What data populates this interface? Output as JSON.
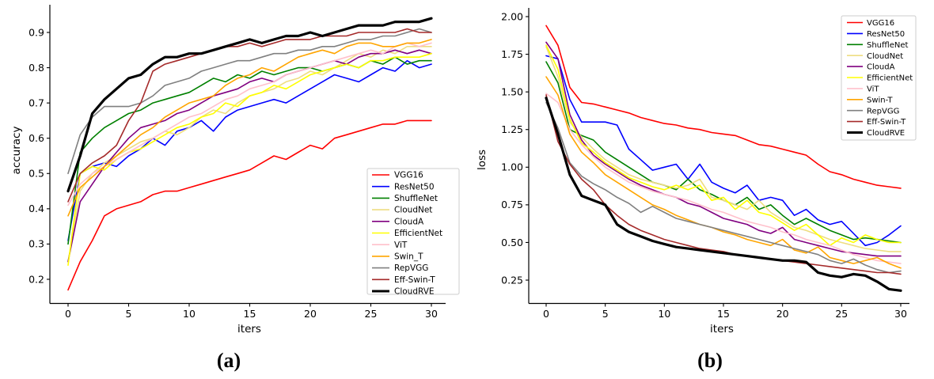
{
  "figure": {
    "captions": [
      "(a)",
      "(b)"
    ]
  },
  "chart_data": [
    {
      "type": "line",
      "title": "",
      "xlabel": "iters",
      "ylabel": "accuracy",
      "xlim": [
        -1.5,
        31.5
      ],
      "ylim": [
        0.13,
        0.98
      ],
      "grid": false,
      "legend_position": "lower right",
      "x": [
        0,
        1,
        2,
        3,
        4,
        5,
        6,
        7,
        8,
        9,
        10,
        11,
        12,
        13,
        14,
        15,
        16,
        17,
        18,
        19,
        20,
        21,
        22,
        23,
        24,
        25,
        26,
        27,
        28,
        29,
        30
      ],
      "xticks": [
        0,
        5,
        10,
        15,
        20,
        25,
        30
      ],
      "yticks": [
        0.2,
        0.3,
        0.4,
        0.5,
        0.6,
        0.7,
        0.8,
        0.9
      ],
      "ytick_labels": [
        "0.2",
        "0.3",
        "0.4",
        "0.5",
        "0.6",
        "0.7",
        "0.8",
        "0.9"
      ],
      "series": [
        {
          "name": "VGG16",
          "color": "#ff0000",
          "width": 1.6,
          "values": [
            0.17,
            0.25,
            0.31,
            0.38,
            0.4,
            0.41,
            0.42,
            0.44,
            0.45,
            0.45,
            0.46,
            0.47,
            0.48,
            0.49,
            0.5,
            0.51,
            0.53,
            0.55,
            0.54,
            0.56,
            0.58,
            0.57,
            0.6,
            0.61,
            0.62,
            0.63,
            0.64,
            0.64,
            0.65,
            0.65,
            0.65
          ]
        },
        {
          "name": "ResNet50",
          "color": "#0000ff",
          "width": 1.6,
          "values": [
            0.31,
            0.5,
            0.52,
            0.53,
            0.52,
            0.55,
            0.57,
            0.6,
            0.58,
            0.62,
            0.63,
            0.65,
            0.62,
            0.66,
            0.68,
            0.69,
            0.7,
            0.71,
            0.7,
            0.72,
            0.74,
            0.76,
            0.78,
            0.77,
            0.76,
            0.78,
            0.8,
            0.79,
            0.82,
            0.8,
            0.81
          ]
        },
        {
          "name": "ShuffleNet",
          "color": "#008000",
          "width": 1.6,
          "values": [
            0.3,
            0.56,
            0.6,
            0.63,
            0.65,
            0.67,
            0.68,
            0.7,
            0.71,
            0.72,
            0.73,
            0.75,
            0.77,
            0.76,
            0.78,
            0.77,
            0.79,
            0.78,
            0.79,
            0.8,
            0.8,
            0.79,
            0.8,
            0.81,
            0.8,
            0.82,
            0.81,
            0.83,
            0.81,
            0.82,
            0.82
          ]
        },
        {
          "name": "CloudNet",
          "color": "#eedd82",
          "width": 1.6,
          "values": [
            0.25,
            0.45,
            0.5,
            0.53,
            0.55,
            0.57,
            0.59,
            0.6,
            0.62,
            0.61,
            0.63,
            0.66,
            0.68,
            0.67,
            0.7,
            0.72,
            0.73,
            0.74,
            0.76,
            0.77,
            0.79,
            0.78,
            0.8,
            0.82,
            0.84,
            0.83,
            0.85,
            0.84,
            0.86,
            0.86,
            0.86
          ]
        },
        {
          "name": "CloudA",
          "color": "#800080",
          "width": 1.6,
          "values": [
            0.25,
            0.42,
            0.47,
            0.52,
            0.56,
            0.6,
            0.63,
            0.64,
            0.65,
            0.67,
            0.68,
            0.7,
            0.72,
            0.73,
            0.74,
            0.76,
            0.77,
            0.76,
            0.78,
            0.79,
            0.8,
            0.81,
            0.82,
            0.81,
            0.83,
            0.84,
            0.84,
            0.85,
            0.84,
            0.85,
            0.84
          ]
        },
        {
          "name": "EfficientNet",
          "color": "#ffff00",
          "width": 1.6,
          "values": [
            0.24,
            0.5,
            0.52,
            0.51,
            0.54,
            0.56,
            0.57,
            0.59,
            0.61,
            0.63,
            0.64,
            0.66,
            0.67,
            0.7,
            0.69,
            0.72,
            0.73,
            0.75,
            0.74,
            0.76,
            0.78,
            0.79,
            0.8,
            0.81,
            0.8,
            0.82,
            0.82,
            0.83,
            0.83,
            0.83,
            0.84
          ]
        },
        {
          "name": "ViT",
          "color": "#ffc0cb",
          "width": 1.6,
          "values": [
            0.41,
            0.47,
            0.5,
            0.52,
            0.54,
            0.56,
            0.58,
            0.6,
            0.62,
            0.64,
            0.66,
            0.67,
            0.69,
            0.71,
            0.72,
            0.74,
            0.75,
            0.76,
            0.78,
            0.79,
            0.8,
            0.81,
            0.82,
            0.83,
            0.84,
            0.85,
            0.84,
            0.86,
            0.87,
            0.86,
            0.87
          ]
        },
        {
          "name": "Swin_T",
          "color": "#ffa500",
          "width": 1.6,
          "values": [
            0.38,
            0.46,
            0.49,
            0.52,
            0.55,
            0.58,
            0.61,
            0.63,
            0.66,
            0.68,
            0.7,
            0.71,
            0.72,
            0.75,
            0.77,
            0.78,
            0.8,
            0.79,
            0.81,
            0.83,
            0.84,
            0.85,
            0.84,
            0.86,
            0.87,
            0.87,
            0.86,
            0.86,
            0.87,
            0.87,
            0.88
          ]
        },
        {
          "name": "RepVGG",
          "color": "#808080",
          "width": 1.6,
          "values": [
            0.5,
            0.61,
            0.66,
            0.69,
            0.69,
            0.69,
            0.7,
            0.72,
            0.75,
            0.76,
            0.77,
            0.79,
            0.8,
            0.81,
            0.82,
            0.82,
            0.83,
            0.84,
            0.84,
            0.85,
            0.85,
            0.86,
            0.86,
            0.87,
            0.88,
            0.88,
            0.89,
            0.89,
            0.9,
            0.91,
            0.9
          ]
        },
        {
          "name": "Eff-Swin-T",
          "color": "#a52a2a",
          "width": 1.6,
          "values": [
            0.42,
            0.5,
            0.53,
            0.55,
            0.58,
            0.65,
            0.7,
            0.79,
            0.81,
            0.82,
            0.83,
            0.84,
            0.85,
            0.86,
            0.86,
            0.87,
            0.86,
            0.87,
            0.88,
            0.88,
            0.88,
            0.89,
            0.89,
            0.89,
            0.9,
            0.9,
            0.9,
            0.9,
            0.91,
            0.9,
            0.9
          ]
        },
        {
          "name": "CloudRVE",
          "color": "#000000",
          "width": 3.2,
          "values": [
            0.45,
            0.55,
            0.67,
            0.71,
            0.74,
            0.77,
            0.78,
            0.81,
            0.83,
            0.83,
            0.84,
            0.84,
            0.85,
            0.86,
            0.87,
            0.88,
            0.87,
            0.88,
            0.89,
            0.89,
            0.9,
            0.89,
            0.9,
            0.91,
            0.92,
            0.92,
            0.92,
            0.93,
            0.93,
            0.93,
            0.94
          ]
        }
      ]
    },
    {
      "type": "line",
      "title": "",
      "xlabel": "iters",
      "ylabel": "loss",
      "xlim": [
        -1.5,
        31.5
      ],
      "ylim": [
        0.09,
        2.03
      ],
      "grid": false,
      "legend_position": "upper right",
      "x": [
        0,
        1,
        2,
        3,
        4,
        5,
        6,
        7,
        8,
        9,
        10,
        11,
        12,
        13,
        14,
        15,
        16,
        17,
        18,
        19,
        20,
        21,
        22,
        23,
        24,
        25,
        26,
        27,
        28,
        29,
        30
      ],
      "xticks": [
        0,
        5,
        10,
        15,
        20,
        25,
        30
      ],
      "yticks": [
        0.25,
        0.5,
        0.75,
        1.0,
        1.25,
        1.5,
        1.75,
        2.0
      ],
      "ytick_labels": [
        "0.25",
        "0.50",
        "0.75",
        "1.00",
        "1.25",
        "1.50",
        "1.75",
        "2.00"
      ],
      "series": [
        {
          "name": "VGG16",
          "color": "#ff0000",
          "width": 1.6,
          "values": [
            1.94,
            1.81,
            1.53,
            1.43,
            1.42,
            1.4,
            1.38,
            1.36,
            1.33,
            1.31,
            1.29,
            1.28,
            1.26,
            1.25,
            1.23,
            1.22,
            1.21,
            1.18,
            1.15,
            1.14,
            1.12,
            1.1,
            1.08,
            1.02,
            0.97,
            0.95,
            0.92,
            0.9,
            0.88,
            0.87,
            0.86
          ]
        },
        {
          "name": "ResNet50",
          "color": "#0000ff",
          "width": 1.6,
          "values": [
            1.74,
            1.72,
            1.45,
            1.3,
            1.3,
            1.3,
            1.28,
            1.12,
            1.05,
            0.98,
            1.0,
            1.02,
            0.92,
            1.02,
            0.9,
            0.86,
            0.83,
            0.88,
            0.78,
            0.8,
            0.78,
            0.68,
            0.72,
            0.65,
            0.62,
            0.64,
            0.56,
            0.48,
            0.5,
            0.55,
            0.61
          ]
        },
        {
          "name": "ShuffleNet",
          "color": "#008000",
          "width": 1.6,
          "values": [
            1.7,
            1.56,
            1.25,
            1.21,
            1.18,
            1.1,
            1.05,
            1.0,
            0.95,
            0.9,
            0.88,
            0.85,
            0.92,
            0.85,
            0.82,
            0.78,
            0.75,
            0.8,
            0.72,
            0.75,
            0.68,
            0.62,
            0.66,
            0.62,
            0.58,
            0.55,
            0.52,
            0.53,
            0.52,
            0.51,
            0.5
          ]
        },
        {
          "name": "CloudNet",
          "color": "#eedd82",
          "width": 1.6,
          "values": [
            1.8,
            1.6,
            1.3,
            1.2,
            1.12,
            1.05,
            1.0,
            0.95,
            0.92,
            0.9,
            0.88,
            0.86,
            0.88,
            0.92,
            0.8,
            0.78,
            0.75,
            0.72,
            0.78,
            0.7,
            0.65,
            0.6,
            0.58,
            0.55,
            0.52,
            0.5,
            0.48,
            0.46,
            0.45,
            0.44,
            0.44
          ]
        },
        {
          "name": "CloudA",
          "color": "#800080",
          "width": 1.6,
          "values": [
            1.83,
            1.72,
            1.35,
            1.18,
            1.08,
            1.02,
            0.97,
            0.92,
            0.88,
            0.85,
            0.82,
            0.8,
            0.76,
            0.74,
            0.7,
            0.66,
            0.64,
            0.62,
            0.58,
            0.56,
            0.6,
            0.52,
            0.5,
            0.48,
            0.46,
            0.44,
            0.43,
            0.42,
            0.41,
            0.41,
            0.41
          ]
        },
        {
          "name": "EfficientNet",
          "color": "#ffff00",
          "width": 1.6,
          "values": [
            1.81,
            1.65,
            1.32,
            1.16,
            1.1,
            1.03,
            0.98,
            0.93,
            0.9,
            0.87,
            0.85,
            0.88,
            0.85,
            0.88,
            0.78,
            0.8,
            0.72,
            0.78,
            0.7,
            0.68,
            0.63,
            0.58,
            0.62,
            0.55,
            0.48,
            0.53,
            0.5,
            0.55,
            0.52,
            0.5,
            0.5
          ]
        },
        {
          "name": "ViT",
          "color": "#ffc0cb",
          "width": 1.6,
          "values": [
            1.49,
            1.43,
            1.25,
            1.15,
            1.07,
            1.0,
            0.95,
            0.9,
            0.87,
            0.84,
            0.82,
            0.8,
            0.78,
            0.75,
            0.72,
            0.7,
            0.67,
            0.64,
            0.62,
            0.6,
            0.57,
            0.55,
            0.52,
            0.5,
            0.48,
            0.45,
            0.42,
            0.4,
            0.38,
            0.37,
            0.36
          ]
        },
        {
          "name": "Swin-T",
          "color": "#ffa500",
          "width": 1.6,
          "values": [
            1.6,
            1.48,
            1.22,
            1.1,
            1.03,
            0.95,
            0.9,
            0.85,
            0.8,
            0.75,
            0.72,
            0.68,
            0.65,
            0.62,
            0.6,
            0.57,
            0.55,
            0.52,
            0.5,
            0.48,
            0.52,
            0.45,
            0.43,
            0.47,
            0.4,
            0.38,
            0.36,
            0.38,
            0.4,
            0.36,
            0.33
          ]
        },
        {
          "name": "RepVGG",
          "color": "#808080",
          "width": 1.6,
          "values": [
            1.43,
            1.26,
            1.03,
            0.94,
            0.89,
            0.85,
            0.8,
            0.76,
            0.7,
            0.74,
            0.7,
            0.66,
            0.64,
            0.62,
            0.6,
            0.58,
            0.56,
            0.54,
            0.52,
            0.5,
            0.48,
            0.46,
            0.44,
            0.42,
            0.38,
            0.36,
            0.39,
            0.35,
            0.32,
            0.3,
            0.31
          ]
        },
        {
          "name": "Eff-Swin-T",
          "color": "#a52a2a",
          "width": 1.6,
          "values": [
            1.48,
            1.17,
            1.02,
            0.92,
            0.85,
            0.75,
            0.68,
            0.62,
            0.58,
            0.55,
            0.52,
            0.5,
            0.48,
            0.46,
            0.45,
            0.44,
            0.42,
            0.41,
            0.4,
            0.39,
            0.38,
            0.37,
            0.36,
            0.35,
            0.34,
            0.33,
            0.32,
            0.31,
            0.3,
            0.3,
            0.29
          ]
        },
        {
          "name": "CloudRVE",
          "color": "#000000",
          "width": 3.2,
          "values": [
            1.46,
            1.22,
            0.95,
            0.81,
            0.78,
            0.75,
            0.62,
            0.57,
            0.54,
            0.51,
            0.49,
            0.47,
            0.46,
            0.45,
            0.44,
            0.43,
            0.42,
            0.41,
            0.4,
            0.39,
            0.38,
            0.38,
            0.37,
            0.3,
            0.28,
            0.27,
            0.29,
            0.28,
            0.24,
            0.19,
            0.18
          ]
        }
      ]
    }
  ]
}
